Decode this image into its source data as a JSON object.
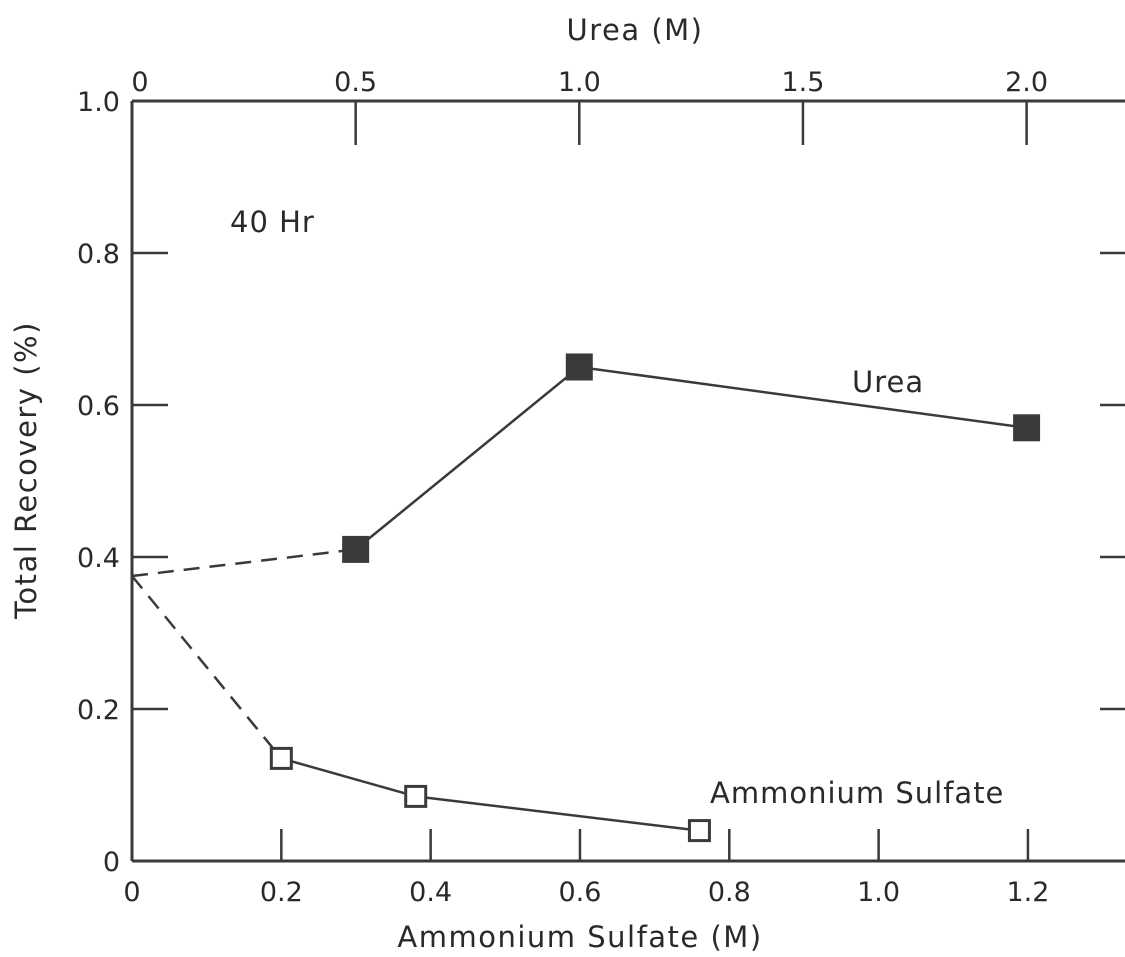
{
  "chart_data": {
    "type": "line",
    "annotation": "40 Hr",
    "ylabel": "Total Recovery (%)",
    "ylim": [
      0,
      1.0
    ],
    "y_ticks": [
      "0",
      "0.2",
      "0.4",
      "0.6",
      "0.8",
      "1.0"
    ],
    "y_tick_values": [
      0,
      0.2,
      0.4,
      0.6,
      0.8,
      1.0
    ],
    "x_bottom": {
      "label": "Ammonium Sulfate (M)",
      "range": [
        0,
        1.33
      ],
      "ticks": [
        "0",
        "0.2",
        "0.4",
        "0.6",
        "0.8",
        "1.0",
        "1.2"
      ],
      "tick_values": [
        0,
        0.2,
        0.4,
        0.6,
        0.8,
        1.0,
        1.2
      ]
    },
    "x_top": {
      "label": "Urea (M)",
      "range": [
        0,
        2.22
      ],
      "ticks": [
        "0",
        "0.5",
        "1.0",
        "1.5",
        "2.0"
      ],
      "tick_values": [
        0,
        0.5,
        1.0,
        1.5,
        2.0
      ]
    },
    "grid": false,
    "series": [
      {
        "name": "Urea",
        "axis": "top",
        "marker": "filled-square",
        "color": "#3a3a3a",
        "points": [
          {
            "x": 0.5,
            "y": 0.41
          },
          {
            "x": 1.0,
            "y": 0.65
          },
          {
            "x": 2.0,
            "y": 0.57
          }
        ],
        "extrapolated_from": {
          "x": 0,
          "y": 0.375
        }
      },
      {
        "name": "Ammonium Sulfate",
        "axis": "bottom",
        "marker": "open-square",
        "color": "#3a3a3a",
        "points": [
          {
            "x": 0.2,
            "y": 0.135
          },
          {
            "x": 0.38,
            "y": 0.085
          },
          {
            "x": 0.76,
            "y": 0.04
          }
        ],
        "extrapolated_from": {
          "x": 0,
          "y": 0.375
        }
      }
    ]
  }
}
